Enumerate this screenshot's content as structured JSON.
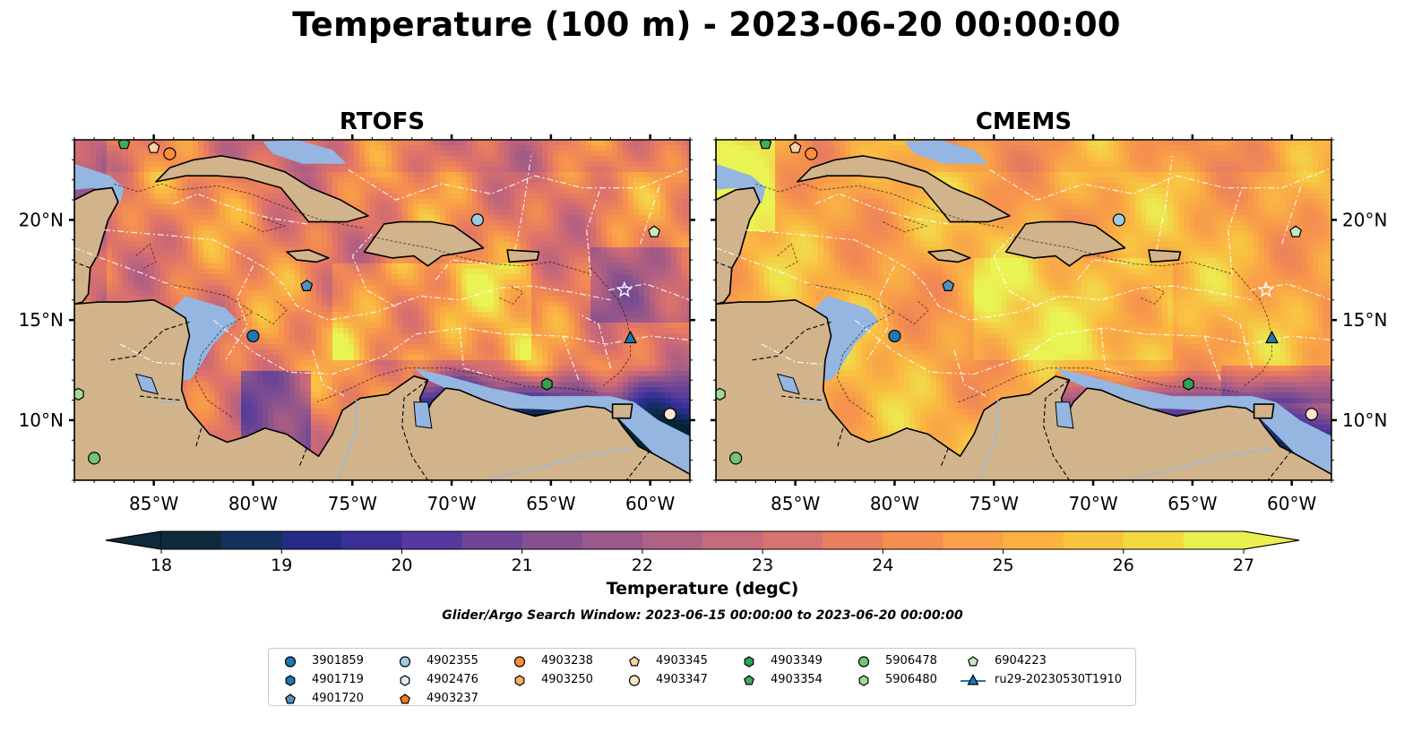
{
  "title": "Temperature (100 m) - 2023-06-20 00:00:00",
  "panels": [
    {
      "title": "RTOFS",
      "model": "rtofs"
    },
    {
      "title": "CMEMS",
      "model": "cmems"
    }
  ],
  "map": {
    "lon_range": [
      -89,
      -58
    ],
    "lat_range": [
      7,
      24
    ],
    "lon_ticks": [
      "85°W",
      "80°W",
      "75°W",
      "70°W",
      "65°W",
      "60°W"
    ],
    "lon_tick_values": [
      -85,
      -80,
      -75,
      -70,
      -65,
      -60
    ],
    "lat_ticks": [
      "20°N",
      "15°N",
      "10°N"
    ],
    "lat_tick_values": [
      20,
      15,
      10
    ],
    "land_color": "#d2b48c",
    "shallow_color": "#95b6e1"
  },
  "colorbar": {
    "label": "Temperature (degC)",
    "ticks": [
      "18",
      "19",
      "20",
      "21",
      "22",
      "23",
      "24",
      "25",
      "26",
      "27"
    ],
    "range": [
      18,
      27
    ],
    "colormap": "thermal",
    "colors": [
      "#0e2a3a",
      "#14305c",
      "#272b85",
      "#3b2f9a",
      "#55399e",
      "#6e4596",
      "#85508f",
      "#9a598a",
      "#b06285",
      "#c46b7c",
      "#d87470",
      "#e98060",
      "#f68e52",
      "#fb9f48",
      "#fbb240",
      "#f7c53d",
      "#f2d941",
      "#e9f04f"
    ]
  },
  "search_window": "Glider/Argo Search Window: 2023-06-15 00:00:00 to 2023-06-20 00:00:00",
  "legend": {
    "items": [
      {
        "label": "3901859",
        "marker": "circle",
        "color": "#1f77b4",
        "lon": -80.0,
        "lat": 14.2
      },
      {
        "label": "4901719",
        "marker": "hexagon",
        "color": "#1f77b4",
        "lon": null,
        "lat": null
      },
      {
        "label": "4901720",
        "marker": "pentagon",
        "color": "#4f91c4",
        "lon": -77.3,
        "lat": 16.7
      },
      {
        "label": "4902355",
        "marker": "circle",
        "color": "#9ecae1",
        "lon": -68.7,
        "lat": 20.0
      },
      {
        "label": "4902476",
        "marker": "hexagon",
        "color": "#deebf7",
        "lon": null,
        "lat": null
      },
      {
        "label": "4903237",
        "marker": "pentagon",
        "color": "#f57c18",
        "lon": null,
        "lat": null
      },
      {
        "label": "4903238",
        "marker": "circle",
        "color": "#fd8d3c",
        "lon": -84.2,
        "lat": 23.3
      },
      {
        "label": "4903250",
        "marker": "hexagon",
        "color": "#fdae6b",
        "lon": null,
        "lat": null
      },
      {
        "label": "4903345",
        "marker": "pentagon",
        "color": "#fdd0a2",
        "lon": -85.0,
        "lat": 23.6
      },
      {
        "label": "4903347",
        "marker": "circle",
        "color": "#fee6ce",
        "lon": -59.0,
        "lat": 10.3
      },
      {
        "label": "4903349",
        "marker": "hexagon",
        "color": "#31a354",
        "lon": -65.2,
        "lat": 11.8
      },
      {
        "label": "4903354",
        "marker": "pentagon",
        "color": "#41ab5d",
        "lon": -86.5,
        "lat": 23.8
      },
      {
        "label": "5906478",
        "marker": "circle",
        "color": "#74c476",
        "lon": -88.0,
        "lat": 8.1
      },
      {
        "label": "5906480",
        "marker": "hexagon",
        "color": "#a1d99b",
        "lon": -88.8,
        "lat": 11.3
      },
      {
        "label": "6904223",
        "marker": "pentagon",
        "color": "#c7e9c0",
        "lon": -59.8,
        "lat": 19.4
      },
      {
        "label": "ru29-20230530T1910",
        "marker": "triangle-line",
        "color": "#1f77b4",
        "lon": -61.0,
        "lat": 14.1
      }
    ]
  }
}
